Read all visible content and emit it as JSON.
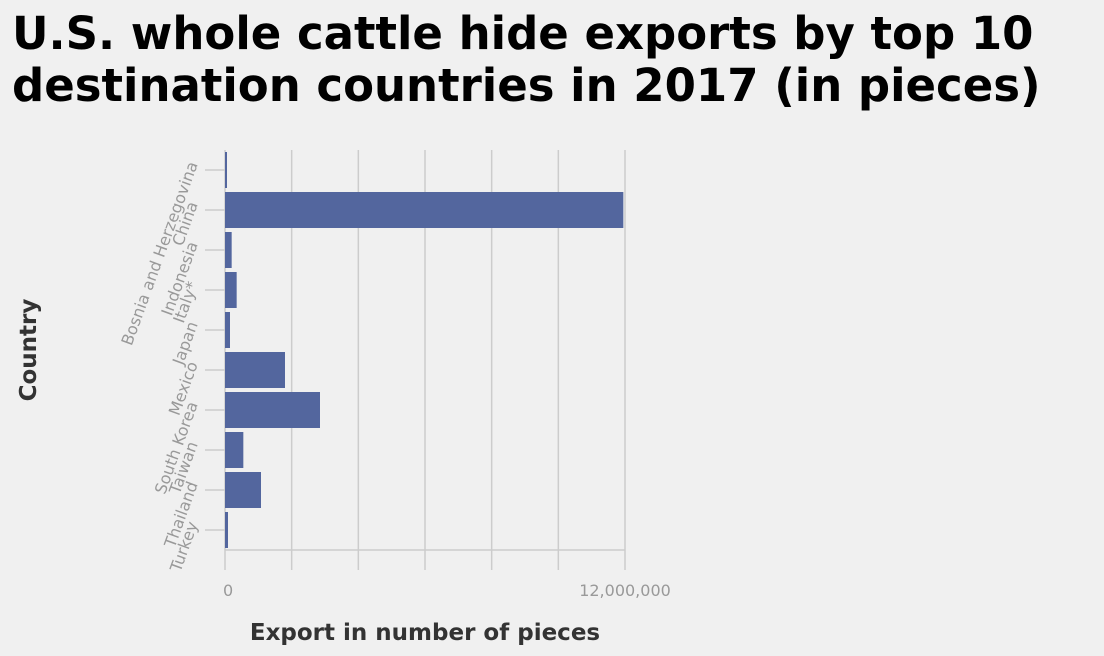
{
  "chart_data": {
    "type": "bar",
    "orientation": "horizontal",
    "title": "U.S. whole cattle hide exports by top 10 destination countries in 2017 (in pieces)",
    "xlabel": "Export in number of pieces",
    "ylabel": "Country",
    "categories": [
      "Bosnia and Herzegovina",
      "China",
      "Indonesia",
      "Italy*",
      "Japan",
      "Mexico",
      "South Korea",
      "Taiwan",
      "Thailand",
      "Turkey"
    ],
    "values": [
      60000,
      11950000,
      200000,
      350000,
      150000,
      1800000,
      2850000,
      550000,
      1080000,
      90000
    ],
    "xlim": [
      0,
      12000000
    ],
    "xticks": [
      0,
      2000000,
      4000000,
      6000000,
      8000000,
      10000000,
      12000000
    ],
    "xtick_labels": [
      "0",
      "",
      "",
      "",
      "",
      "",
      "12,000,000"
    ],
    "grid": true,
    "colors": {
      "bar": "#53669e",
      "grid": "#cccccc",
      "axis": "#cccccc"
    }
  }
}
